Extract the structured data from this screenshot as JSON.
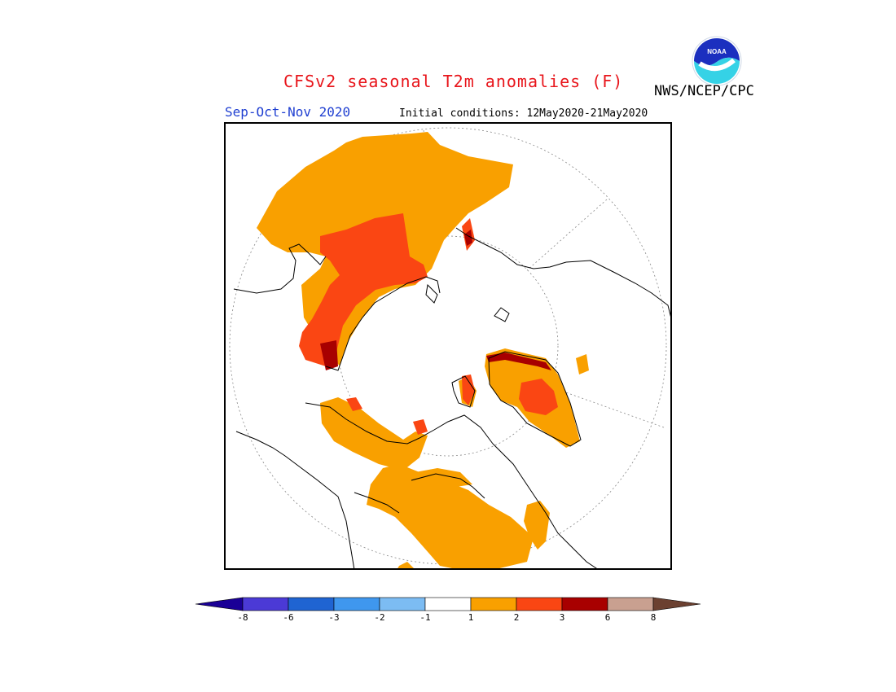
{
  "header": {
    "title": "CFSv2 seasonal T2m anomalies (F)",
    "agency": "NWS/NCEP/CPC",
    "period": "Sep-Oct-Nov 2020",
    "initial_conditions": "Initial conditions: 12May2020-21May2020",
    "logo_text": "NOAA"
  },
  "colors": {
    "title": "#e8151b",
    "period": "#1f3fd1",
    "frame": "#000000",
    "anom_1_2": "#f9a000",
    "anom_2_3": "#fa4613",
    "anom_3_6": "#a80000",
    "anom_6_8": "#c9a090",
    "coast": "#000000",
    "grid": "#888888"
  },
  "colorbar": {
    "labels": [
      "-8",
      "-6",
      "-3",
      "-2",
      "-1",
      "1",
      "2",
      "3",
      "6",
      "8"
    ],
    "bins": [
      {
        "color": "#1a0096"
      },
      {
        "color": "#4b3ad6"
      },
      {
        "color": "#1f64d2"
      },
      {
        "color": "#3f97ee"
      },
      {
        "color": "#7cbcf3"
      },
      {
        "color": "#ffffff"
      },
      {
        "color": "#f9a000"
      },
      {
        "color": "#fa4613"
      },
      {
        "color": "#a80000"
      },
      {
        "color": "#c9a090"
      },
      {
        "color": "#6b4030"
      }
    ]
  }
}
